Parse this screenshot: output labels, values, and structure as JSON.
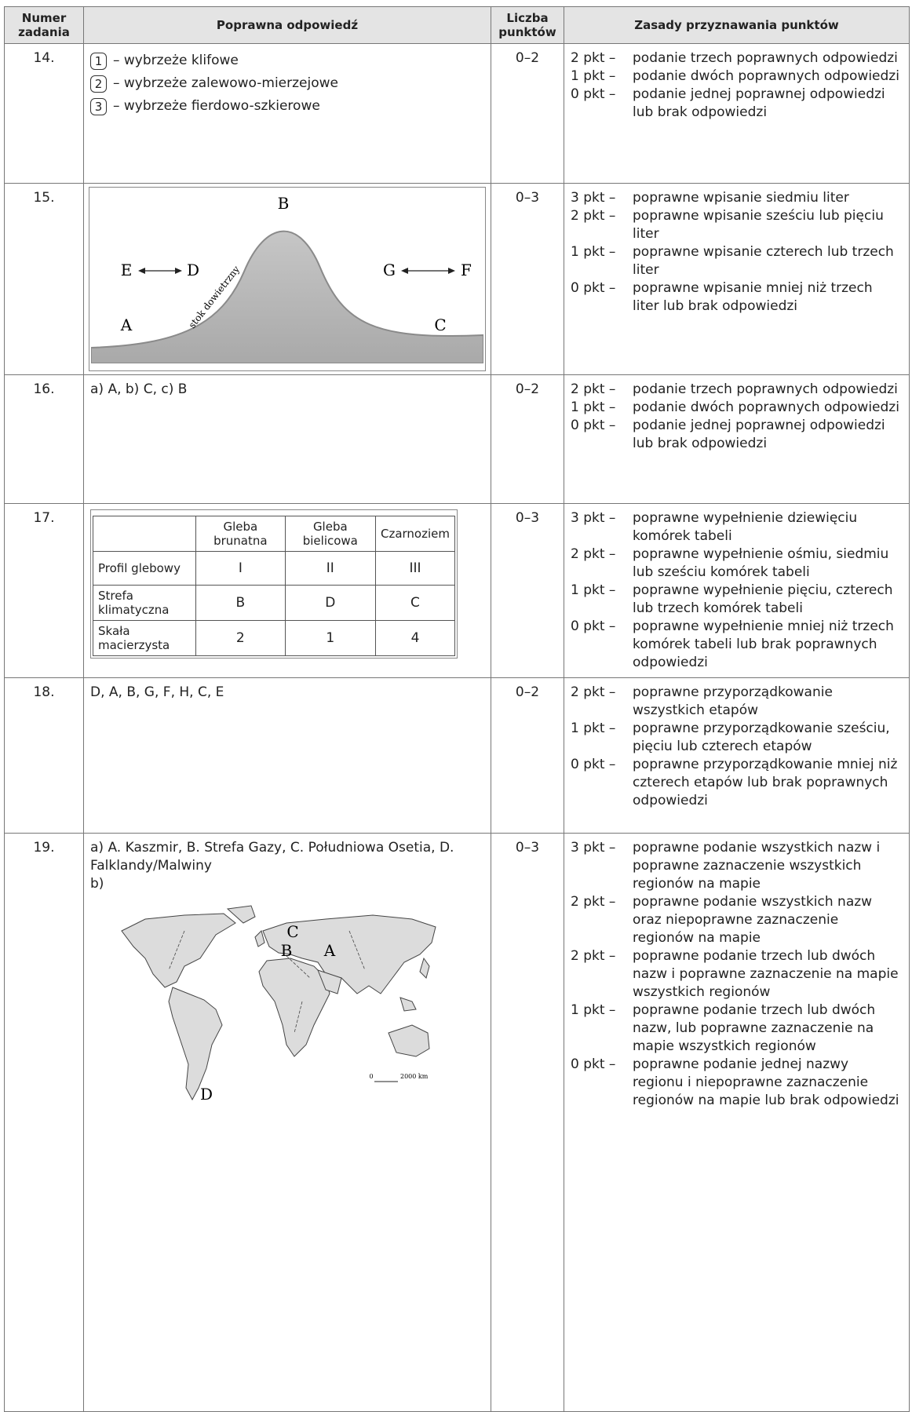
{
  "header": {
    "columns": [
      "Numer zadania",
      "Poprawna odpowiedź",
      "Liczba punktów",
      "Zasady przyznawania punktów"
    ]
  },
  "tasks": [
    {
      "number": "14.",
      "answer": {
        "items": [
          {
            "number": "1",
            "text": "– wybrzeże klifowe"
          },
          {
            "number": "2",
            "text": "– wybrzeże zalewowo-mierzejowe"
          },
          {
            "number": "3",
            "text": "– wybrzeże fierdowo-szkierowe"
          }
        ]
      },
      "points": "0–2",
      "rules": [
        {
          "points": "2 pkt –",
          "text": "podanie trzech poprawnych odpowiedzi"
        },
        {
          "points": "1 pkt –",
          "text": "podanie dwóch poprawnych odpowiedzi"
        },
        {
          "points": "0 pkt –",
          "text": "podanie jednej poprawnej odpowiedzi lub brak odpowiedzi"
        }
      ]
    },
    {
      "number": "15.",
      "answer": {
        "diagram": {
          "top": "B",
          "left_outer": "E",
          "left_inner": "D",
          "right_inner": "G",
          "right_outer": "F",
          "left_foot": "A",
          "right_foot": "C",
          "slope": "stok dowietrzny"
        }
      },
      "points": "0–3",
      "rules": [
        {
          "points": "3 pkt –",
          "text": "poprawne wpisanie siedmiu liter"
        },
        {
          "points": "2 pkt –",
          "text": "poprawne wpisanie sześciu lub pięciu liter"
        },
        {
          "points": "1 pkt –",
          "text": "poprawne wpisanie czterech lub trzech liter"
        },
        {
          "points": "0 pkt –",
          "text": "poprawne wpisanie mniej niż trzech liter lub brak odpowiedzi"
        }
      ]
    },
    {
      "number": "16.",
      "answer": {
        "text": "a) A, b) C, c) B"
      },
      "points": "0–2",
      "rules": [
        {
          "points": "2 pkt –",
          "text": "podanie trzech poprawnych odpowiedzi"
        },
        {
          "points": "1 pkt –",
          "text": "podanie dwóch poprawnych odpowiedzi"
        },
        {
          "points": "0 pkt –",
          "text": "podanie jednej poprawnej odpowiedzi lub brak odpowiedzi"
        }
      ]
    },
    {
      "number": "17.",
      "answer": {
        "table": {
          "columns": [
            "Gleba brunatna",
            "Gleba bielicowa",
            "Czarnoziem"
          ],
          "rows": [
            {
              "label": "Profil glebowy",
              "cells": [
                "I",
                "II",
                "III"
              ]
            },
            {
              "label": "Strefa klimatyczna",
              "cells": [
                "B",
                "D",
                "C"
              ]
            },
            {
              "label": "Skała macierzysta",
              "cells": [
                "2",
                "1",
                "4"
              ]
            }
          ]
        }
      },
      "points": "0–3",
      "rules": [
        {
          "points": "3 pkt –",
          "text": "poprawne wypełnienie dziewięciu komórek tabeli"
        },
        {
          "points": "2 pkt –",
          "text": "poprawne wypełnienie ośmiu, siedmiu lub sześciu komórek tabeli"
        },
        {
          "points": "1 pkt –",
          "text": "poprawne wypełnienie pięciu, czterech lub trzech komórek tabeli"
        },
        {
          "points": "0 pkt –",
          "text": "poprawne wypełnienie mniej niż trzech komórek tabeli lub brak poprawnych odpowiedzi"
        }
      ]
    },
    {
      "number": "18.",
      "answer": {
        "text": "D, A, B, G, F, H, C, E"
      },
      "points": "0–2",
      "rules": [
        {
          "points": "2 pkt –",
          "text": "poprawne przyporządkowanie wszystkich etapów"
        },
        {
          "points": "1 pkt –",
          "text": "poprawne przyporządkowanie sześciu, pięciu lub czterech etapów"
        },
        {
          "points": "0 pkt –",
          "text": "poprawne przyporządkowanie mniej niż czterech etapów lub brak poprawnych odpowiedzi"
        }
      ]
    },
    {
      "number": "19.",
      "answer": {
        "lines": [
          "a) A. Kaszmir, B. Strefa Gazy, C. Południowa Osetia, D. Falklandy/Malwiny",
          "b)"
        ],
        "map": {
          "labels": [
            "C",
            "B",
            "A",
            "D"
          ],
          "scale_start": "0",
          "scale_end": "2000 km"
        }
      },
      "points": "0–3",
      "rules": [
        {
          "points": "3 pkt –",
          "text": "poprawne podanie wszystkich nazw i poprawne zaznaczenie wszystkich regionów na mapie"
        },
        {
          "points": "2 pkt –",
          "text": "poprawne podanie wszystkich nazw oraz niepoprawne zaznaczenie regionów na mapie"
        },
        {
          "points": "2 pkt –",
          "text": "poprawne podanie trzech lub dwóch nazw i poprawne zaznaczenie na mapie wszystkich regionów"
        },
        {
          "points": "1 pkt –",
          "text": "poprawne podanie trzech lub dwóch nazw, lub poprawne zaznaczenie na mapie wszystkich regionów"
        },
        {
          "points": "0 pkt –",
          "text": "poprawne podanie jednej nazwy regionu i niepoprawne zaznaczenie regionów na mapie lub brak odpowiedzi"
        }
      ]
    }
  ]
}
